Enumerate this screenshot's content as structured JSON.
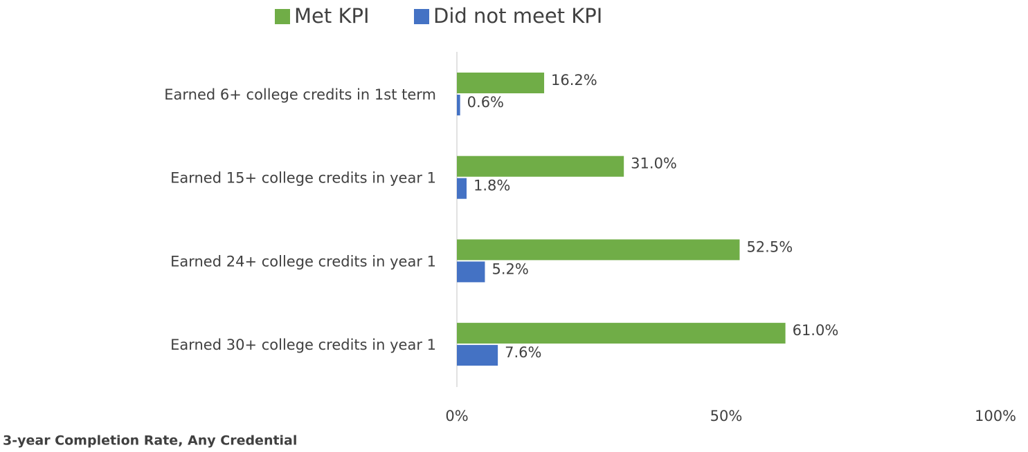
{
  "chart_data": {
    "type": "bar",
    "orientation": "horizontal",
    "xlabel": "3-year Completion Rate, Any Credential",
    "categories": [
      "Earned 6+ college credits in 1st term",
      "Earned 15+ college credits in year 1",
      "Earned 24+ college credits in year 1",
      "Earned 30+ college credits in year 1"
    ],
    "series": [
      {
        "name": "Met KPI",
        "color": "#70ad47",
        "values": [
          16.2,
          31.0,
          52.5,
          61.0
        ],
        "value_labels": [
          "16.2%",
          "31.0%",
          "52.5%",
          "61.0%"
        ]
      },
      {
        "name": "Did not meet KPI",
        "color": "#4472c4",
        "values": [
          0.6,
          1.8,
          5.2,
          7.6
        ],
        "value_labels": [
          "0.6%",
          "1.8%",
          "5.2%",
          "7.6%"
        ]
      }
    ],
    "xlim": [
      0,
      100
    ],
    "xticks": [
      {
        "value": 0,
        "label": "0%"
      },
      {
        "value": 50,
        "label": "50%"
      },
      {
        "value": 100,
        "label": "100%"
      }
    ],
    "legend": "top",
    "grid": false
  }
}
